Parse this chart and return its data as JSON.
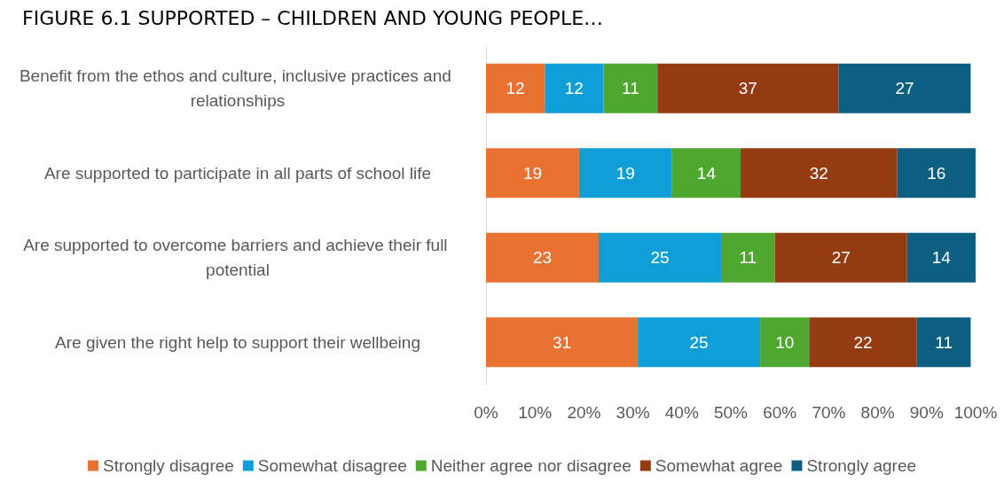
{
  "chart_data": {
    "type": "bar",
    "orientation": "horizontal",
    "stacked": true,
    "title": "FIGURE 6.1 SUPPORTED – CHILDREN AND YOUNG PEOPLE…",
    "categories": [
      "Benefit from the ethos and culture, inclusive practices and relationships",
      "Are supported to participate in all parts of school life",
      "Are supported to overcome barriers and achieve their full potential",
      "Are given the right help to support their wellbeing"
    ],
    "series": [
      {
        "name": "Strongly disagree",
        "color": "#e97132",
        "values": [
          12,
          19,
          23,
          31
        ]
      },
      {
        "name": "Somewhat disagree",
        "color": "#0f9ed5",
        "values": [
          12,
          19,
          25,
          25
        ]
      },
      {
        "name": "Neither agree nor disagree",
        "color": "#4ea72e",
        "values": [
          11,
          14,
          11,
          10
        ]
      },
      {
        "name": "Somewhat agree",
        "color": "#953b11",
        "values": [
          37,
          32,
          27,
          22
        ]
      },
      {
        "name": "Strongly agree",
        "color": "#0c5f80",
        "values": [
          27,
          16,
          14,
          11
        ]
      }
    ],
    "xlim": [
      0,
      100
    ],
    "xticks": [
      {
        "value": 0,
        "label": "0%"
      },
      {
        "value": 10,
        "label": "10%"
      },
      {
        "value": 20,
        "label": "20%"
      },
      {
        "value": 30,
        "label": "30%"
      },
      {
        "value": 40,
        "label": "40%"
      },
      {
        "value": 50,
        "label": "50%"
      },
      {
        "value": 60,
        "label": "60%"
      },
      {
        "value": 70,
        "label": "70%"
      },
      {
        "value": 80,
        "label": "80%"
      },
      {
        "value": 90,
        "label": "90%"
      },
      {
        "value": 100,
        "label": "100%"
      }
    ],
    "data_labels": true,
    "grid": false,
    "legend": "bottom"
  }
}
